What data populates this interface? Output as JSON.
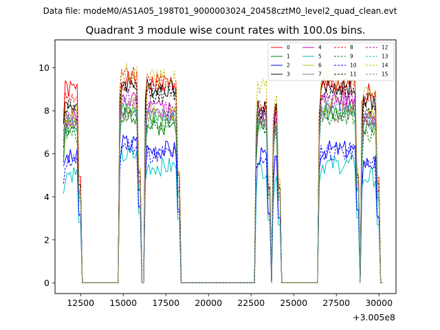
{
  "figure": {
    "suptitle": "Data file: modeM0/AS1A05_198T01_9000003024_20458cztM0_level2_quad_clean.evt"
  },
  "chart_data": {
    "type": "line",
    "title": "Quadrant 3 module wise count rates with 100.0s bins.",
    "xlabel": "",
    "ylabel": "",
    "x_offset_label": "+3.005e8",
    "xlim": [
      11000,
      31000
    ],
    "ylim": [
      -0.5,
      11.3
    ],
    "x_ticks": [
      12500,
      15000,
      17500,
      20000,
      22500,
      25000,
      27500,
      30000
    ],
    "x_tick_labels": [
      "12500",
      "15000",
      "17500",
      "20000",
      "22500",
      "25000",
      "27500",
      "30000"
    ],
    "y_ticks": [
      0,
      2,
      4,
      6,
      8,
      10
    ],
    "y_tick_labels": [
      "0",
      "2",
      "4",
      "6",
      "8",
      "10"
    ],
    "legend_position": "top-right",
    "segments": [
      {
        "name": "seg1",
        "x_start": 11500,
        "x_end": 12500
      },
      {
        "name": "seg2",
        "x_start": 14800,
        "x_end": 16000
      },
      {
        "name": "seg3",
        "x_start": 16300,
        "x_end": 18300
      },
      {
        "name": "seg4",
        "x_start": 22800,
        "x_end": 23600
      },
      {
        "name": "seg5",
        "x_start": 23800,
        "x_end": 24200
      },
      {
        "name": "seg6",
        "x_start": 26500,
        "x_end": 28800
      },
      {
        "name": "seg7",
        "x_start": 29000,
        "x_end": 30000
      }
    ],
    "series": [
      {
        "name": "0",
        "color": "#ff0000",
        "dash": "solid",
        "levels": [
          9.0,
          9.4,
          9.3,
          7.9,
          8.0,
          9.1,
          8.9
        ]
      },
      {
        "name": "1",
        "color": "#008000",
        "dash": "solid",
        "levels": [
          7.2,
          7.8,
          7.3,
          7.4,
          7.2,
          8.0,
          7.2
        ]
      },
      {
        "name": "2",
        "color": "#0000ff",
        "dash": "solid",
        "levels": [
          5.8,
          6.5,
          6.2,
          5.9,
          5.5,
          6.2,
          5.6
        ]
      },
      {
        "name": "3",
        "color": "#000000",
        "dash": "solid",
        "levels": [
          8.3,
          9.3,
          9.1,
          8.1,
          8.1,
          9.1,
          8.4
        ]
      },
      {
        "name": "4",
        "color": "#bf00bf",
        "dash": "solid",
        "levels": [
          7.7,
          8.5,
          8.1,
          7.7,
          7.6,
          8.5,
          7.8
        ]
      },
      {
        "name": "5",
        "color": "#00bfbf",
        "dash": "solid",
        "levels": [
          5.1,
          5.9,
          5.4,
          5.3,
          4.9,
          5.5,
          4.9
        ]
      },
      {
        "name": "6",
        "color": "#bfbf00",
        "dash": "solid",
        "levels": [
          7.6,
          8.2,
          7.8,
          7.7,
          7.5,
          8.2,
          7.7
        ]
      },
      {
        "name": "7",
        "color": "#808080",
        "dash": "solid",
        "levels": [
          7.4,
          8.0,
          7.7,
          7.5,
          7.2,
          7.9,
          7.5
        ]
      },
      {
        "name": "8",
        "color": "#ff0000",
        "dash": "dashed",
        "levels": [
          8.7,
          9.6,
          9.3,
          8.3,
          8.3,
          9.2,
          8.6
        ]
      },
      {
        "name": "9",
        "color": "#008000",
        "dash": "dashed",
        "levels": [
          6.9,
          7.9,
          7.3,
          7.1,
          7.0,
          7.8,
          7.0
        ]
      },
      {
        "name": "10",
        "color": "#0000ff",
        "dash": "dashed",
        "levels": [
          5.7,
          6.4,
          6.0,
          5.8,
          5.5,
          6.1,
          5.5
        ]
      },
      {
        "name": "11",
        "color": "#000000",
        "dash": "dashed",
        "levels": [
          8.2,
          9.0,
          8.8,
          8.0,
          8.0,
          8.9,
          8.2
        ]
      },
      {
        "name": "12",
        "color": "#bf00bf",
        "dash": "dashed",
        "levels": [
          7.6,
          8.6,
          8.0,
          7.9,
          7.7,
          8.4,
          7.7
        ]
      },
      {
        "name": "13",
        "color": "#00bfbf",
        "dash": "dashed",
        "levels": [
          7.3,
          8.1,
          7.6,
          7.5,
          7.3,
          8.0,
          7.4
        ]
      },
      {
        "name": "14",
        "color": "#bfbf00",
        "dash": "dashed",
        "levels": [
          7.9,
          9.8,
          9.5,
          9.0,
          8.8,
          9.6,
          8.8
        ]
      },
      {
        "name": "15",
        "color": "#808080",
        "dash": "dashed",
        "levels": [
          7.5,
          8.3,
          7.9,
          7.7,
          7.5,
          8.2,
          7.6
        ]
      }
    ]
  }
}
